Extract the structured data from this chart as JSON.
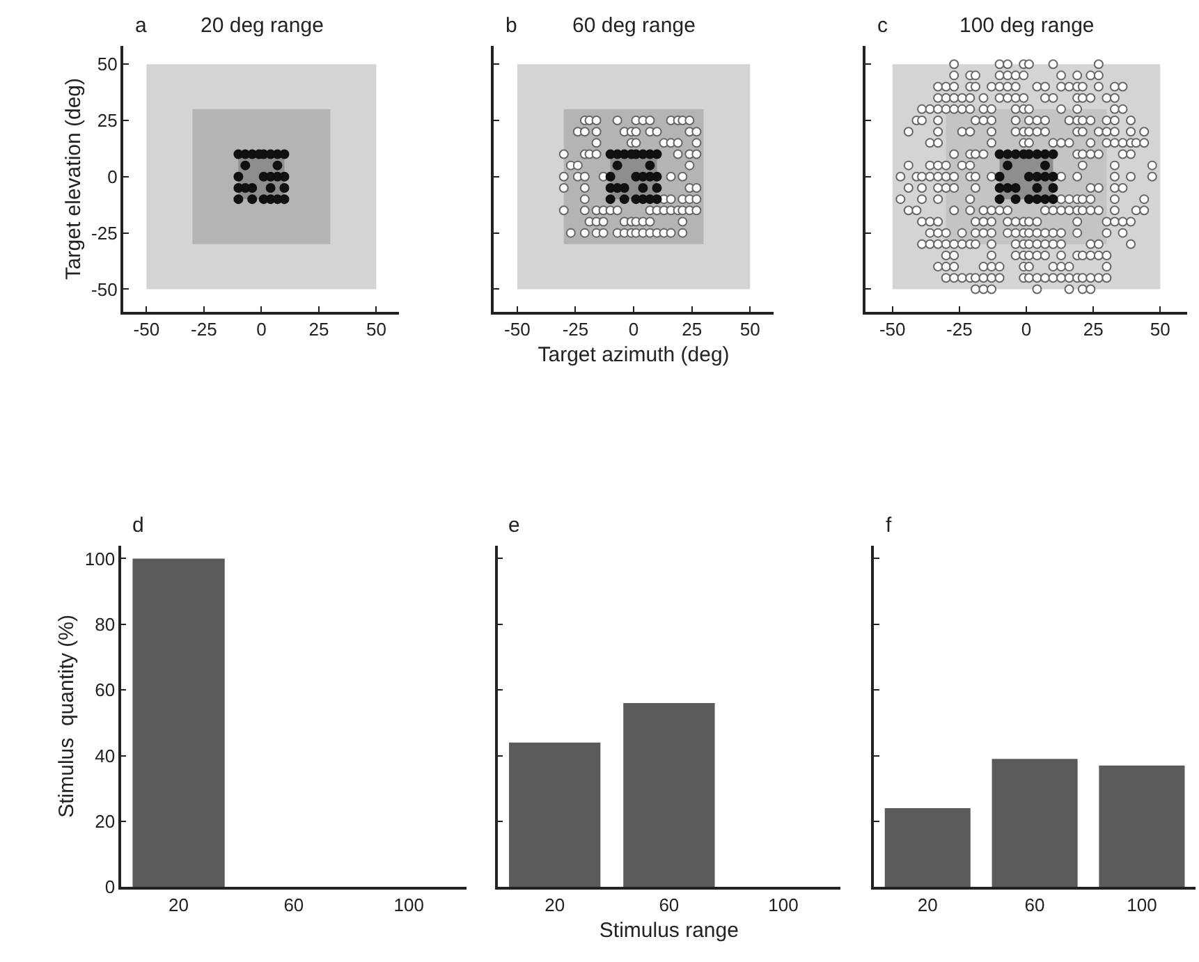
{
  "chart_data": [
    {
      "type": "scatter",
      "title": "20 deg range",
      "annotations": [
        "a"
      ],
      "ylabel": "Target elevation (deg)",
      "xlim": [
        -60,
        60
      ],
      "ylim": [
        -60,
        58
      ],
      "xticks": [
        -50,
        -25,
        0,
        25,
        50
      ],
      "yticks": [
        -50,
        -25,
        0,
        25,
        50
      ],
      "bands": [
        {
          "axis": "x",
          "from": -50,
          "to": 50,
          "color": "#d4d4d4"
        },
        {
          "axis": "x",
          "from": -30,
          "to": 30,
          "color": "#b4b4b4"
        },
        {
          "axis": "x",
          "from": -10,
          "to": 10,
          "color": "#8e8e8e"
        }
      ],
      "series": [
        {
          "color": "#111111",
          "marker": "circle",
          "x": [
            -10,
            -7,
            -4,
            -1,
            1,
            4,
            7,
            10,
            -7,
            7,
            -10,
            1,
            4,
            7,
            10,
            -10,
            -7,
            -4,
            4,
            10,
            -10,
            -4,
            1,
            4,
            7,
            10
          ],
          "values": [
            10,
            10,
            10,
            10,
            10,
            10,
            10,
            10,
            5,
            5,
            0,
            0,
            0,
            0,
            0,
            -5,
            -5,
            -5,
            -5,
            -5,
            -10,
            -10,
            -10,
            -10,
            -10,
            -10
          ]
        }
      ]
    },
    {
      "type": "scatter",
      "title": "60 deg range",
      "annotations": [
        "b"
      ],
      "xlabel": "Target azimuth (deg)",
      "xlim": [
        -60,
        60
      ],
      "ylim": [
        -60,
        58
      ],
      "xticks": [
        -50,
        -25,
        0,
        25,
        50
      ],
      "yticks": [
        -50,
        -25,
        0,
        25,
        50
      ],
      "tick_labels": "x",
      "bands": [
        {
          "axis": "x",
          "from": -50,
          "to": 50,
          "color": "#d4d4d4"
        },
        {
          "axis": "x",
          "from": -30,
          "to": 30,
          "color": "#b4b4b4"
        },
        {
          "axis": "x",
          "from": -10,
          "to": 10,
          "color": "#8e8e8e"
        }
      ],
      "series": [
        {
          "color": "#666666",
          "marker": "circle-open",
          "x": [
            -21,
            -19,
            -16,
            -7,
            1,
            4,
            7,
            16,
            19,
            21,
            24,
            -24,
            -21,
            -16,
            -4,
            -1,
            1,
            7,
            10,
            24,
            27,
            -16,
            -1,
            1,
            13,
            16,
            19,
            27,
            -30,
            -21,
            -19,
            -16,
            19,
            24,
            27,
            -27,
            -24,
            24,
            -30,
            -24,
            -21,
            -13,
            16,
            21,
            -30,
            -21,
            24,
            27,
            -21,
            13,
            16,
            21,
            24,
            27,
            -30,
            -21,
            -16,
            -13,
            -10,
            -7,
            7,
            10,
            13,
            16,
            19,
            21,
            24,
            27,
            -19,
            -16,
            -13,
            -4,
            -1,
            1,
            4,
            7,
            21,
            -27,
            -21,
            -16,
            -13,
            -7,
            -4,
            -1,
            1,
            4,
            7,
            10,
            13,
            16,
            21
          ],
          "values": [
            25,
            25,
            25,
            25,
            25,
            25,
            25,
            25,
            25,
            25,
            25,
            20,
            20,
            20,
            20,
            20,
            20,
            20,
            20,
            20,
            20,
            15,
            15,
            15,
            15,
            15,
            15,
            15,
            10,
            10,
            10,
            10,
            10,
            10,
            10,
            5,
            5,
            5,
            0,
            0,
            0,
            0,
            0,
            0,
            -5,
            -5,
            -5,
            -5,
            -10,
            -10,
            -10,
            -10,
            -10,
            -10,
            -15,
            -15,
            -15,
            -15,
            -15,
            -15,
            -15,
            -15,
            -15,
            -15,
            -15,
            -15,
            -15,
            -15,
            -20,
            -20,
            -20,
            -20,
            -20,
            -20,
            -20,
            -20,
            -20,
            -25,
            -25,
            -25,
            -25,
            -25,
            -25,
            -25,
            -25,
            -25,
            -25,
            -25,
            -25,
            -25,
            -25
          ]
        },
        {
          "color": "#111111",
          "marker": "circle",
          "x": [
            -10,
            -7,
            -4,
            -1,
            1,
            4,
            7,
            10,
            -7,
            7,
            -10,
            1,
            4,
            7,
            10,
            -10,
            -7,
            -4,
            4,
            10,
            -10,
            -4,
            1,
            4,
            7,
            10
          ],
          "values": [
            10,
            10,
            10,
            10,
            10,
            10,
            10,
            10,
            5,
            5,
            0,
            0,
            0,
            0,
            0,
            -5,
            -5,
            -5,
            -5,
            -5,
            -10,
            -10,
            -10,
            -10,
            -10,
            -10
          ]
        }
      ]
    },
    {
      "type": "scatter",
      "title": "100 deg range",
      "annotations": [
        "c"
      ],
      "xlim": [
        -60,
        60
      ],
      "ylim": [
        -60,
        58
      ],
      "xticks": [
        -50,
        -25,
        0,
        25,
        50
      ],
      "yticks": [
        -50,
        -25,
        0,
        25,
        50
      ],
      "tick_labels": "x",
      "bands": [
        {
          "axis": "x",
          "from": -50,
          "to": 50,
          "color": "#d4d4d4"
        },
        {
          "axis": "x",
          "from": -30,
          "to": 30,
          "color": "#c4c4c4"
        },
        {
          "axis": "x",
          "from": -10,
          "to": 10,
          "color": "#8e8e8e"
        }
      ],
      "series": [
        {
          "color": "#666666",
          "marker": "circle-open",
          "x": [
            -27,
            -10,
            -7,
            -1,
            1,
            10,
            27,
            -27,
            -21,
            -19,
            -10,
            -7,
            -4,
            -1,
            13,
            19,
            24,
            27,
            -33,
            -30,
            -27,
            -21,
            -19,
            -13,
            -10,
            -7,
            -4,
            4,
            7,
            13,
            16,
            19,
            21,
            27,
            33,
            36,
            -33,
            -30,
            -27,
            -24,
            -21,
            -16,
            -10,
            -7,
            -4,
            -1,
            7,
            10,
            19,
            21,
            24,
            30,
            33,
            -39,
            -36,
            -33,
            -30,
            -27,
            -24,
            -21,
            -16,
            -13,
            -4,
            -1,
            1,
            13,
            19,
            33,
            36,
            -41,
            -39,
            -33,
            -19,
            -16,
            -13,
            -4,
            1,
            4,
            7,
            16,
            19,
            21,
            24,
            30,
            33,
            39,
            -44,
            -33,
            -24,
            -21,
            -13,
            -4,
            -1,
            1,
            4,
            7,
            19,
            21,
            27,
            30,
            33,
            39,
            44,
            -36,
            -33,
            -13,
            -1,
            1,
            10,
            13,
            16,
            24,
            30,
            33,
            36,
            39,
            41,
            44,
            -27,
            -21,
            -19,
            -16,
            19,
            21,
            24,
            27,
            36,
            39,
            -44,
            -36,
            -33,
            -30,
            -24,
            -21,
            21,
            33,
            47,
            -47,
            -41,
            -39,
            -36,
            -33,
            -30,
            -27,
            -21,
            -19,
            -13,
            13,
            19,
            33,
            39,
            47,
            -44,
            -39,
            -33,
            -30,
            -27,
            -19,
            24,
            27,
            33,
            36,
            -47,
            -39,
            -33,
            -21,
            13,
            16,
            19,
            21,
            24,
            33,
            44,
            -44,
            -41,
            -27,
            -21,
            -16,
            -13,
            -10,
            -7,
            7,
            10,
            13,
            16,
            19,
            21,
            24,
            27,
            33,
            41,
            44,
            -39,
            -36,
            -33,
            -19,
            -16,
            -13,
            -7,
            -4,
            -1,
            1,
            4,
            19,
            30,
            33,
            36,
            39,
            -36,
            -33,
            -30,
            -24,
            -19,
            -16,
            -13,
            -7,
            -4,
            -1,
            1,
            4,
            7,
            10,
            13,
            19,
            30,
            36,
            -39,
            -36,
            -33,
            -30,
            -27,
            -24,
            -21,
            -19,
            -13,
            -4,
            -1,
            1,
            4,
            7,
            10,
            13,
            24,
            27,
            39,
            -30,
            -27,
            -13,
            -4,
            -1,
            1,
            4,
            7,
            13,
            19,
            21,
            24,
            27,
            30,
            -33,
            -30,
            -27,
            -16,
            -13,
            -10,
            -1,
            1,
            10,
            13,
            16,
            30,
            -30,
            -27,
            -24,
            -21,
            -19,
            -16,
            -13,
            -10,
            -1,
            1,
            4,
            7,
            10,
            13,
            16,
            19,
            21,
            24,
            27,
            30,
            -19,
            -16,
            -13,
            4,
            16,
            21,
            24
          ],
          "values": [
            50,
            50,
            50,
            50,
            50,
            50,
            50,
            45,
            45,
            45,
            45,
            45,
            45,
            45,
            45,
            45,
            45,
            45,
            40,
            40,
            40,
            40,
            40,
            40,
            40,
            40,
            40,
            40,
            40,
            40,
            40,
            40,
            40,
            40,
            40,
            40,
            35,
            35,
            35,
            35,
            35,
            35,
            35,
            35,
            35,
            35,
            35,
            35,
            35,
            35,
            35,
            35,
            35,
            30,
            30,
            30,
            30,
            30,
            30,
            30,
            30,
            30,
            30,
            30,
            30,
            30,
            30,
            30,
            30,
            25,
            25,
            25,
            25,
            25,
            25,
            25,
            25,
            25,
            25,
            25,
            25,
            25,
            25,
            25,
            25,
            25,
            20,
            20,
            20,
            20,
            20,
            20,
            20,
            20,
            20,
            20,
            20,
            20,
            20,
            20,
            20,
            20,
            20,
            15,
            15,
            15,
            15,
            15,
            15,
            15,
            15,
            15,
            15,
            15,
            15,
            15,
            15,
            15,
            10,
            10,
            10,
            10,
            10,
            10,
            10,
            10,
            10,
            10,
            5,
            5,
            5,
            5,
            5,
            5,
            5,
            5,
            5,
            0,
            0,
            0,
            0,
            0,
            0,
            0,
            0,
            0,
            0,
            0,
            0,
            0,
            0,
            0,
            -5,
            -5,
            -5,
            -5,
            -5,
            -5,
            -5,
            -5,
            -5,
            -5,
            -10,
            -10,
            -10,
            -10,
            -10,
            -10,
            -10,
            -10,
            -10,
            -10,
            -10,
            -15,
            -15,
            -15,
            -15,
            -15,
            -15,
            -15,
            -15,
            -15,
            -15,
            -15,
            -15,
            -15,
            -15,
            -15,
            -15,
            -15,
            -15,
            -15,
            -20,
            -20,
            -20,
            -20,
            -20,
            -20,
            -20,
            -20,
            -20,
            -20,
            -20,
            -20,
            -20,
            -20,
            -20,
            -20,
            -25,
            -25,
            -25,
            -25,
            -25,
            -25,
            -25,
            -25,
            -25,
            -25,
            -25,
            -25,
            -25,
            -25,
            -25,
            -25,
            -25,
            -25,
            -30,
            -30,
            -30,
            -30,
            -30,
            -30,
            -30,
            -30,
            -30,
            -30,
            -30,
            -30,
            -30,
            -30,
            -30,
            -30,
            -30,
            -30,
            -30,
            -35,
            -35,
            -35,
            -35,
            -35,
            -35,
            -35,
            -35,
            -35,
            -35,
            -35,
            -35,
            -35,
            -35,
            -40,
            -40,
            -40,
            -40,
            -40,
            -40,
            -40,
            -40,
            -40,
            -40,
            -40,
            -40,
            -45,
            -45,
            -45,
            -45,
            -45,
            -45,
            -45,
            -45,
            -45,
            -45,
            -45,
            -45,
            -45,
            -45,
            -45,
            -45,
            -45,
            -45,
            -45,
            -45,
            -50,
            -50,
            -50,
            -50,
            -50,
            -50,
            -50
          ]
        },
        {
          "color": "#111111",
          "marker": "circle",
          "x": [
            -10,
            -7,
            -4,
            -1,
            1,
            4,
            7,
            10,
            -7,
            7,
            -10,
            1,
            4,
            7,
            10,
            -10,
            -7,
            -4,
            4,
            10,
            -10,
            -4,
            1,
            4,
            7,
            10
          ],
          "values": [
            10,
            10,
            10,
            10,
            10,
            10,
            10,
            10,
            5,
            5,
            0,
            0,
            0,
            0,
            0,
            -5,
            -5,
            -5,
            -5,
            -5,
            -10,
            -10,
            -10,
            -10,
            -10,
            -10
          ]
        }
      ]
    },
    {
      "type": "bar",
      "annotations": [
        "d"
      ],
      "ylabel": "Stimulus  quantity (%)",
      "categories": [
        "20",
        "60",
        "100"
      ],
      "values": [
        100,
        0,
        0
      ],
      "color": "#5a5a5a",
      "ylim": [
        0,
        104
      ],
      "yticks": [
        0,
        20,
        40,
        60,
        80,
        100
      ]
    },
    {
      "type": "bar",
      "annotations": [
        "e"
      ],
      "xlabel": "Stimulus range",
      "categories": [
        "20",
        "60",
        "100"
      ],
      "values": [
        44,
        56,
        0
      ],
      "color": "#5a5a5a",
      "ylim": [
        0,
        104
      ],
      "yticks": [
        0,
        20,
        40,
        60,
        80,
        100
      ],
      "tick_labels": "x"
    },
    {
      "type": "bar",
      "annotations": [
        "f"
      ],
      "categories": [
        "20",
        "60",
        "100"
      ],
      "values": [
        24,
        39,
        37
      ],
      "color": "#5a5a5a",
      "ylim": [
        0,
        104
      ],
      "yticks": [
        0,
        20,
        40,
        60,
        80,
        100
      ],
      "tick_labels": "x"
    }
  ]
}
